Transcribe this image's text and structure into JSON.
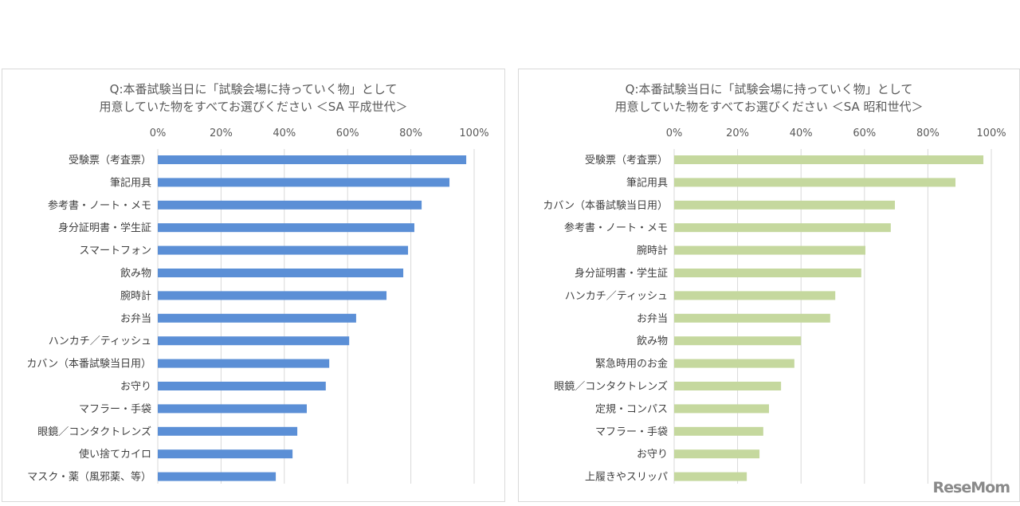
{
  "chart_data": [
    {
      "type": "bar",
      "orientation": "horizontal",
      "title": "Q:本番試験当日に「試験会場に持っていく物」として\n用意していた物をすべてお選びください ＜SA 平成世代＞",
      "xlim": [
        0,
        100
      ],
      "ticks": [
        "0%",
        "20%",
        "40%",
        "60%",
        "80%",
        "100%"
      ],
      "grid": true,
      "color": "#5b8fd6",
      "categories": [
        "受験票（考査票）",
        "筆記用具",
        "参考書・ノート・メモ",
        "身分証明書・学生証",
        "スマートフォン",
        "飲み物",
        "腕時計",
        "お弁当",
        "ハンカチ／ティッシュ",
        "カバン（本番試験当日用）",
        "お守り",
        "マフラー・手袋",
        "眼鏡／コンタクトレンズ",
        "使い捨てカイロ",
        "マスク・薬（風邪薬、等）"
      ],
      "values": [
        97.5,
        92.2,
        83.4,
        81.1,
        79.1,
        77.6,
        72.3,
        62.7,
        60.5,
        54.2,
        53.1,
        47.1,
        44.1,
        42.6,
        37.3
      ]
    },
    {
      "type": "bar",
      "orientation": "horizontal",
      "title": "Q:本番試験当日に「試験会場に持っていく物」として\n用意していた物をすべてお選びください ＜SA 昭和世代＞",
      "xlim": [
        0,
        100
      ],
      "ticks": [
        "0%",
        "20%",
        "40%",
        "60%",
        "80%",
        "100%"
      ],
      "grid": true,
      "color": "#c5d89e",
      "categories": [
        "受験票（考査票）",
        "筆記用具",
        "カバン（本番試験当日用）",
        "参考書・ノート・メモ",
        "腕時計",
        "身分証明書・学生証",
        "ハンカチ／ティッシュ",
        "お弁当",
        "飲み物",
        "緊急時用のお金",
        "眼鏡／コンタクトレンズ",
        "定規・コンパス",
        "マフラー・手袋",
        "お守り",
        "上履きやスリッパ"
      ],
      "values": [
        97.5,
        88.7,
        69.6,
        68.3,
        60.3,
        59.0,
        50.8,
        49.2,
        40.0,
        37.9,
        33.7,
        29.9,
        28.1,
        26.9,
        22.9
      ]
    }
  ],
  "logo": "ReseMom"
}
